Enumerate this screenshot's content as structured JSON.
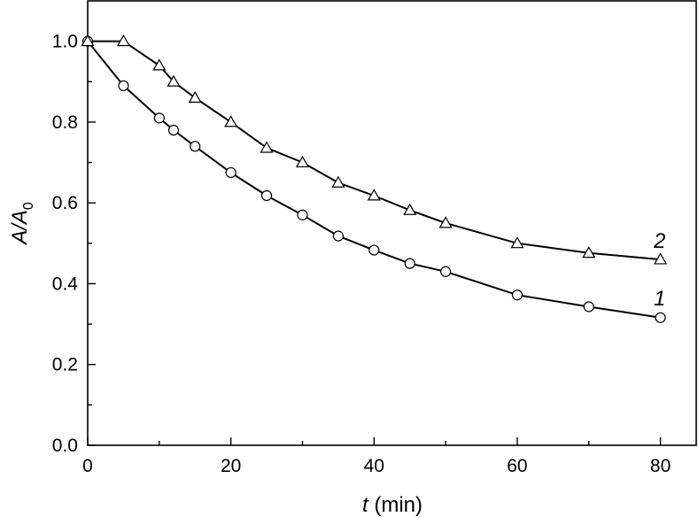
{
  "chart_data": {
    "type": "line",
    "xlabel": {
      "var": "t",
      "rest": " (min)"
    },
    "ylabel": {
      "main": "A/A",
      "sub": "0"
    },
    "xlim": [
      0,
      85
    ],
    "ylim": [
      0,
      1.1
    ],
    "xticks": [
      "0",
      "20",
      "40",
      "60",
      "80"
    ],
    "xtick_values": [
      0,
      20,
      40,
      60,
      80
    ],
    "yticks": [
      "0.0",
      "0.2",
      "0.4",
      "0.6",
      "0.8",
      "1.0"
    ],
    "ytick_values": [
      0,
      0.2,
      0.4,
      0.6,
      0.8,
      1.0
    ],
    "grid": false,
    "series": [
      {
        "label": "1",
        "marker": "circle",
        "x": [
          0,
          5,
          10,
          12,
          15,
          20,
          25,
          30,
          35,
          40,
          45,
          50,
          60,
          70,
          80
        ],
        "y": [
          1.0,
          0.89,
          0.81,
          0.78,
          0.74,
          0.675,
          0.618,
          0.57,
          0.518,
          0.483,
          0.45,
          0.43,
          0.372,
          0.343,
          0.316
        ]
      },
      {
        "label": "2",
        "marker": "triangle",
        "x": [
          0,
          5,
          10,
          12,
          15,
          20,
          25,
          30,
          35,
          40,
          45,
          50,
          60,
          70,
          80
        ],
        "y": [
          1.0,
          1.0,
          0.94,
          0.9,
          0.86,
          0.8,
          0.736,
          0.7,
          0.65,
          0.618,
          0.582,
          0.55,
          0.5,
          0.476,
          0.46
        ]
      }
    ]
  }
}
